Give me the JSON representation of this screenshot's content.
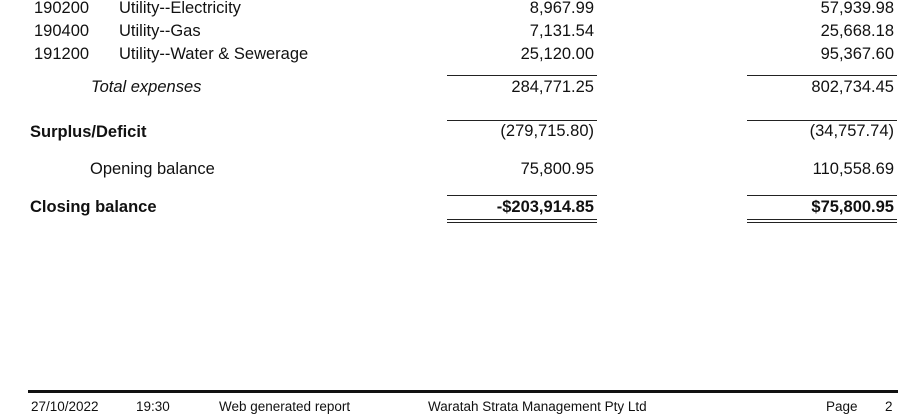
{
  "expense_rows": [
    {
      "code": "190200",
      "name": "Utility--Electricity",
      "current": "8,967.99",
      "previous": "57,939.98"
    },
    {
      "code": "190400",
      "name": "Utility--Gas",
      "current": "7,131.54",
      "previous": "25,668.18"
    },
    {
      "code": "191200",
      "name": "Utility--Water & Sewerage",
      "current": "25,120.00",
      "previous": "95,367.60"
    }
  ],
  "total_expenses": {
    "label": "Total expenses",
    "current": "284,771.25",
    "previous": "802,734.45"
  },
  "surplus": {
    "label": "Surplus/Deficit",
    "current": "(279,715.80)",
    "previous": "(34,757.74)"
  },
  "opening": {
    "label": "Opening balance",
    "current": "75,800.95",
    "previous": "110,558.69"
  },
  "closing": {
    "label": "Closing balance",
    "current": "-$203,914.85",
    "previous": "$75,800.95"
  },
  "footer": {
    "date": "27/10/2022",
    "time": "19:30",
    "report_note": "Web generated report",
    "company": "Waratah Strata Management Pty Ltd",
    "page_label": "Page",
    "page_number": "2"
  }
}
